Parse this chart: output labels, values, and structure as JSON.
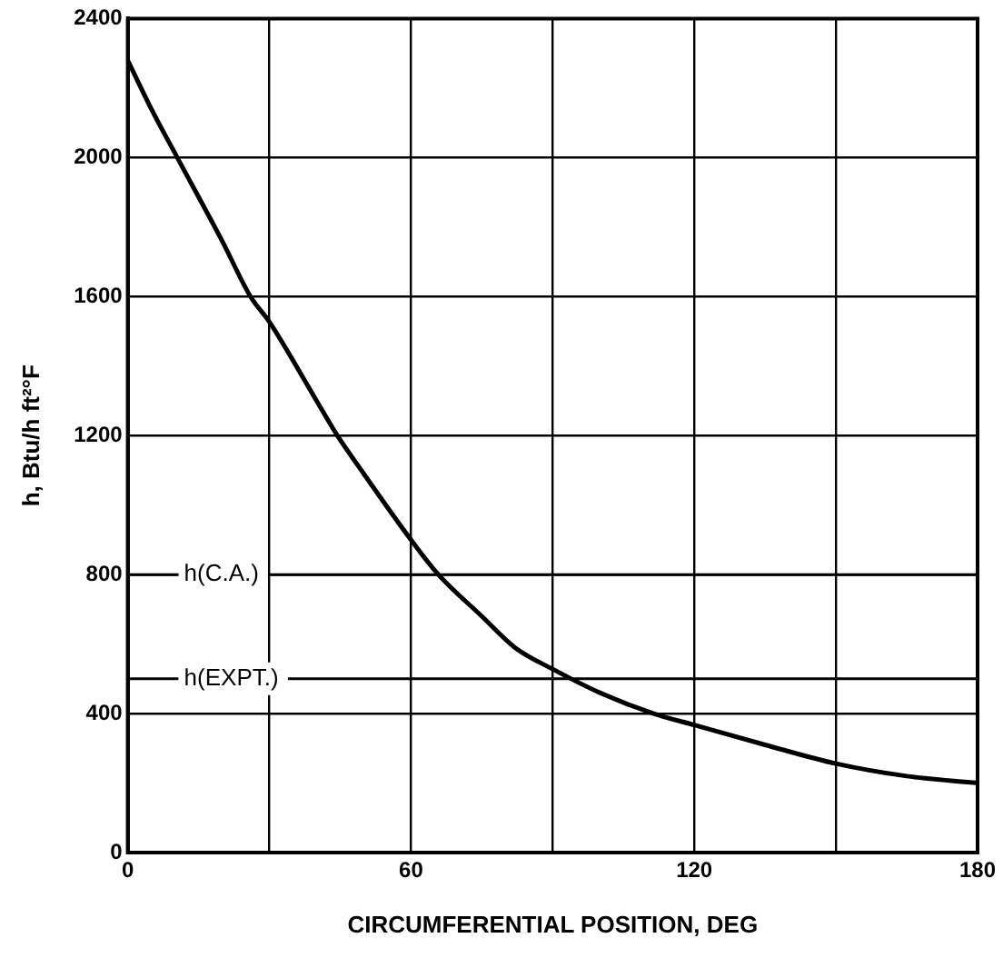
{
  "chart_data": {
    "type": "line",
    "xlabel": "CIRCUMFERENTIAL POSITION, DEG",
    "ylabel": "h, Btu/h ft²°F",
    "x": [
      0,
      5,
      10.5,
      20,
      26,
      30,
      40,
      44.4,
      50,
      60,
      65.8,
      75,
      82,
      90,
      100,
      111.4,
      120,
      135,
      150,
      165,
      180
    ],
    "series": [
      {
        "color": "#000000",
        "values": [
          2280,
          2140,
          2000,
          1760,
          1600,
          1527,
          1300,
          1200,
          1090,
          900,
          800,
          680,
          590,
          528,
          460,
          400,
          367,
          310,
          256,
          220,
          200
        ]
      }
    ],
    "xlim": [
      0,
      180
    ],
    "xticks": [
      0,
      {
        "value": 30,
        "label": null
      },
      60,
      {
        "value": 90,
        "label": null
      },
      120,
      {
        "value": 150,
        "label": null
      },
      180
    ],
    "ylim": [
      0,
      2400
    ],
    "yticks": [
      0,
      400,
      800,
      1200,
      1600,
      2000,
      2400
    ],
    "ref_lines": [
      {
        "axis": "y",
        "value": 800,
        "label": "h(C.A.)"
      },
      {
        "axis": "y",
        "value": 500,
        "label": "h(EXPT.)"
      }
    ],
    "grid": true,
    "legend": false,
    "marker": "none",
    "line_style": "solid"
  }
}
